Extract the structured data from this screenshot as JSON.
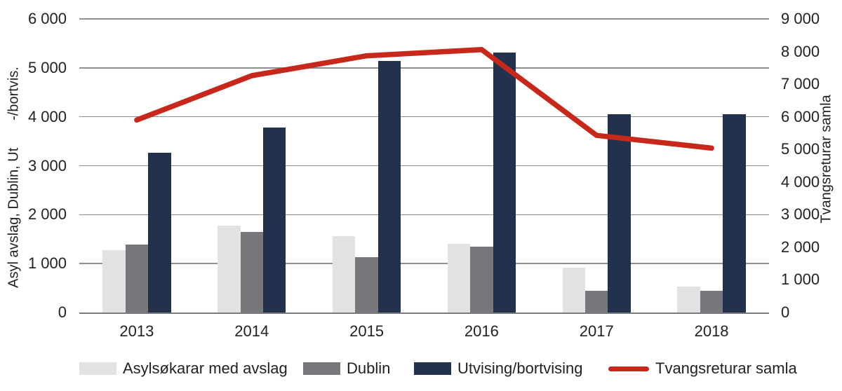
{
  "chart_data": {
    "type": "bar",
    "subtype": "grouped-bars-with-line-overlay",
    "categories": [
      "2013",
      "2014",
      "2015",
      "2016",
      "2017",
      "2018"
    ],
    "series": [
      {
        "name": "Asylsøkarar med avslag",
        "type": "bar",
        "axis": "left",
        "color": "#e2e2e3",
        "values": [
          1270,
          1780,
          1560,
          1400,
          920,
          530
        ]
      },
      {
        "name": "Dublin",
        "type": "bar",
        "axis": "left",
        "color": "#76787c",
        "values": [
          1390,
          1640,
          1130,
          1350,
          440,
          440
        ]
      },
      {
        "name": "Utvising/bortvising",
        "type": "bar",
        "axis": "left",
        "color": "#22324c",
        "values": [
          3260,
          3780,
          5140,
          5310,
          4050,
          4050
        ]
      },
      {
        "name": "Tvangsreturar samla",
        "type": "line",
        "axis": "right",
        "color": "#c8281b",
        "values": [
          5900,
          7260,
          7870,
          8060,
          5430,
          5040
        ]
      }
    ],
    "left_axis": {
      "label": "Asyl avslag, Dublin, Ut       -/bortvis.",
      "min": 0,
      "max": 6000,
      "step": 1000,
      "tick_labels": [
        "0",
        "1 000",
        "2 000",
        "3 000",
        "4 000",
        "5 000",
        "6 000"
      ]
    },
    "right_axis": {
      "label": "Tvangsreturar samla",
      "min": 0,
      "max": 9000,
      "step": 1000,
      "tick_labels": [
        "0",
        "1 000",
        "2 000",
        "3 000",
        "4 000",
        "5 000",
        "6 000",
        "7 000",
        "8 000",
        "9 000"
      ]
    },
    "grid": true,
    "legend_position": "bottom",
    "colors": {
      "grid": "#8e8e8e",
      "axis_line": "#7b7b7d",
      "text": "#231f20"
    }
  }
}
